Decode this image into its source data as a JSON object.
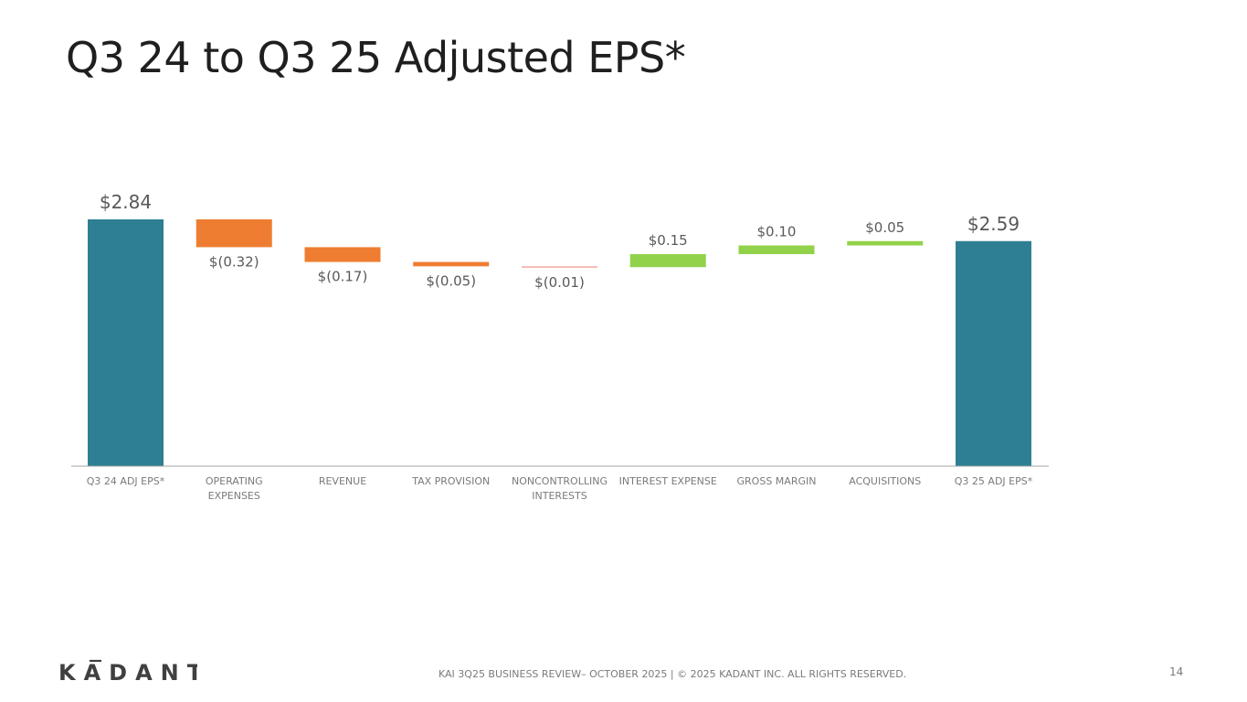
{
  "slide": {
    "title": "Q3 24 to Q3 25 Adjusted EPS*",
    "footer": "KAI 3Q25 BUSINESS REVIEW– OCTOBER 2025  |  © 2025 KADANT INC. ALL RIGHTS RESERVED.",
    "page_number": "14",
    "logo_text": "KADANT"
  },
  "chart_data": {
    "type": "bar",
    "subtype": "waterfall",
    "title": "",
    "xlabel": "",
    "ylabel": "",
    "ylim": [
      0,
      2.84
    ],
    "grid": false,
    "categories": [
      "Q3 24 ADJ EPS*",
      "OPERATING\nEXPENSES",
      "REVENUE",
      "TAX PROVISION",
      "NONCONTROLLING\nINTERESTS",
      "INTEREST EXPENSE",
      "GROSS MARGIN",
      "ACQUISITIONS",
      "Q3 25 ADJ EPS*"
    ],
    "values": [
      2.84,
      -0.32,
      -0.17,
      -0.05,
      -0.01,
      0.15,
      0.1,
      0.05,
      2.59
    ],
    "kinds": [
      "total",
      "delta",
      "delta",
      "delta",
      "delta",
      "delta",
      "delta",
      "delta",
      "total"
    ],
    "data_labels": [
      "$2.84",
      "$(0.32)",
      "$(0.17)",
      "$(0.05)",
      "$(0.01)",
      "$0.15",
      "$0.10",
      "$0.05",
      "$2.59"
    ],
    "colors": {
      "total": "#2e7f93",
      "decrease": "#ee7d31",
      "decrease_small": "#f4a6a0",
      "increase": "#92d24a",
      "axis": "#a6a6a6",
      "label": "#595959",
      "total_label": "#595959"
    }
  }
}
